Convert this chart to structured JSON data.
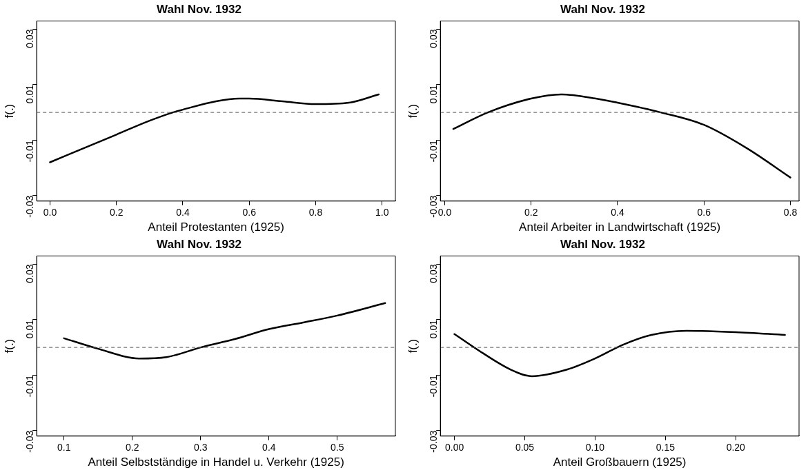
{
  "chart_data": [
    {
      "type": "line",
      "title": "Wahl Nov. 1932",
      "xlabel": "Anteil Protestanten (1925)",
      "ylabel": "f(.)",
      "x": [
        0,
        0.1,
        0.2,
        0.3,
        0.37,
        0.4,
        0.5,
        0.57,
        0.6,
        0.7,
        0.8,
        0.9,
        0.99
      ],
      "series": [
        {
          "color": "#000000",
          "values": [
            -0.018,
            -0.013,
            -0.008,
            -0.003,
            0,
            0.001,
            0.004,
            0.005,
            0.005,
            0.004,
            0.003,
            0.0035,
            0.0065
          ]
        }
      ],
      "xlim": [
        -0.04,
        1.04
      ],
      "xticks": [
        {
          "value": 0,
          "label": "0.0"
        },
        0.2,
        0.4,
        0.6,
        0.8,
        {
          "value": 1,
          "label": "1.0"
        }
      ],
      "ylim": [
        -0.032,
        0.033
      ],
      "yticks": [
        -0.03,
        -0.01,
        0.01,
        0.03
      ],
      "ref_lines": [
        {
          "axis": "y",
          "value": 0,
          "color": "#555555",
          "line_style": "dashed"
        }
      ],
      "grid": false,
      "legend": false,
      "marker": "none"
    },
    {
      "type": "line",
      "title": "Wahl Nov. 1932",
      "xlabel": "Anteil Arbeiter in Landwirtschaft (1925)",
      "ylabel": "f(.)",
      "x": [
        0.02,
        0.1,
        0.2,
        0.27,
        0.35,
        0.4,
        0.5,
        0.6,
        0.7,
        0.8
      ],
      "series": [
        {
          "color": "#000000",
          "values": [
            -0.006,
            0,
            0.005,
            0.0065,
            0.005,
            0.0035,
            0,
            -0.0045,
            -0.013,
            -0.0235
          ]
        }
      ],
      "xlim": [
        -0.01,
        0.82
      ],
      "xticks": [
        {
          "value": 0,
          "label": "0.0"
        },
        0.2,
        0.4,
        0.6,
        0.8
      ],
      "ylim": [
        -0.032,
        0.033
      ],
      "yticks": [
        -0.03,
        -0.01,
        0.01,
        0.03
      ],
      "ref_lines": [
        {
          "axis": "y",
          "value": 0,
          "color": "#555555",
          "line_style": "dashed"
        }
      ],
      "grid": false,
      "legend": false,
      "marker": "none"
    },
    {
      "type": "line",
      "title": "Wahl Nov. 1932",
      "xlabel": "Anteil Selbstständige in Handel u. Verkehr (1925)",
      "ylabel": "f(.)",
      "x": [
        0.1,
        0.15,
        0.21,
        0.25,
        0.3,
        0.35,
        0.4,
        0.45,
        0.5,
        0.57
      ],
      "series": [
        {
          "color": "#000000",
          "values": [
            0.0033,
            -0.0005,
            -0.004,
            -0.0035,
            0,
            0.003,
            0.0066,
            0.009,
            0.0115,
            0.016
          ]
        }
      ],
      "xlim": [
        0.06,
        0.585
      ],
      "xticks": [
        0.1,
        0.2,
        0.3,
        0.4,
        0.5
      ],
      "ylim": [
        -0.032,
        0.033
      ],
      "yticks": [
        -0.03,
        -0.01,
        0.01,
        0.03
      ],
      "ref_lines": [
        {
          "axis": "y",
          "value": 0,
          "color": "#555555",
          "line_style": "dashed"
        }
      ],
      "grid": false,
      "legend": false,
      "marker": "none"
    },
    {
      "type": "line",
      "title": "Wahl Nov. 1932",
      "xlabel": "Anteil Großbauern (1925)",
      "ylabel": "f(.)",
      "x": [
        0,
        0.02,
        0.04,
        0.055,
        0.08,
        0.1,
        0.12,
        0.14,
        0.165,
        0.2,
        0.235
      ],
      "series": [
        {
          "color": "#000000",
          "values": [
            0.0048,
            -0.002,
            -0.008,
            -0.0104,
            -0.008,
            -0.004,
            0.001,
            0.0045,
            0.006,
            0.0055,
            0.0045
          ]
        }
      ],
      "xlim": [
        -0.01,
        0.245
      ],
      "xticks": [
        {
          "value": 0,
          "label": "0.00"
        },
        0.05,
        {
          "value": 0.1,
          "label": "0.10"
        },
        0.15,
        {
          "value": 0.2,
          "label": "0.20"
        }
      ],
      "ylim": [
        -0.032,
        0.033
      ],
      "yticks": [
        -0.03,
        -0.01,
        0.01,
        0.03
      ],
      "ref_lines": [
        {
          "axis": "y",
          "value": 0,
          "color": "#555555",
          "line_style": "dashed"
        }
      ],
      "grid": false,
      "legend": false,
      "marker": "none"
    }
  ]
}
